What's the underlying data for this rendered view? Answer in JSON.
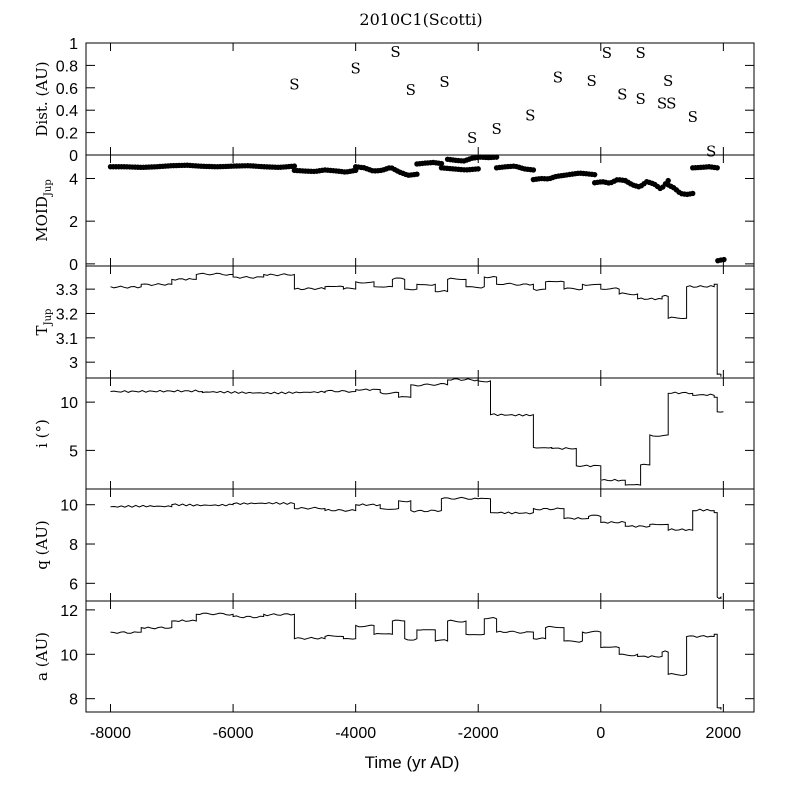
{
  "chart_data": {
    "type": "line",
    "title": "2010C1(Scotti)",
    "xlabel": "Time (yr AD)",
    "xlim": [
      -8400,
      2500
    ],
    "xticks": [
      -8000,
      -6000,
      -4000,
      -2000,
      0,
      2000
    ],
    "grid": false,
    "panels": [
      {
        "id": "dist",
        "ylabel": "Dist. (AU)",
        "ylim": [
          0,
          1
        ],
        "yticks": [
          "0",
          "0.2",
          "0.4",
          "0.6",
          "0.8",
          "1"
        ],
        "type": "scatter",
        "marker": "S",
        "points": [
          {
            "x": -5000,
            "y": 0.64
          },
          {
            "x": -4000,
            "y": 0.78
          },
          {
            "x": -3350,
            "y": 0.93
          },
          {
            "x": -3100,
            "y": 0.59
          },
          {
            "x": -2550,
            "y": 0.66
          },
          {
            "x": -2100,
            "y": 0.16
          },
          {
            "x": -1700,
            "y": 0.24
          },
          {
            "x": -1150,
            "y": 0.36
          },
          {
            "x": -700,
            "y": 0.7
          },
          {
            "x": -150,
            "y": 0.67
          },
          {
            "x": 100,
            "y": 0.92
          },
          {
            "x": 350,
            "y": 0.55
          },
          {
            "x": 650,
            "y": 0.92
          },
          {
            "x": 650,
            "y": 0.51
          },
          {
            "x": 1000,
            "y": 0.47
          },
          {
            "x": 1100,
            "y": 0.67
          },
          {
            "x": 1150,
            "y": 0.47
          },
          {
            "x": 1500,
            "y": 0.35
          },
          {
            "x": 1800,
            "y": 0.04
          }
        ]
      },
      {
        "id": "moid",
        "ylabel": "MOID",
        "ylabel_sub": "Jup",
        "ylim": [
          -0.1,
          5.1
        ],
        "yticks": [
          "0",
          "2",
          "4"
        ],
        "type": "scatter",
        "marker": "dot",
        "segments": [
          {
            "x0": -8000,
            "x1": -5000,
            "y": [
              4.55,
              4.55,
              4.52,
              4.55,
              4.6,
              4.62,
              4.57,
              4.55,
              4.58,
              4.6,
              4.55,
              4.52,
              4.58
            ]
          },
          {
            "x0": -5000,
            "x1": -4000,
            "y": [
              4.38,
              4.35,
              4.33,
              4.4,
              4.36,
              4.3,
              4.38
            ]
          },
          {
            "x0": -4000,
            "x1": -3000,
            "y": [
              4.55,
              4.5,
              4.35,
              4.38,
              4.52,
              4.3,
              4.15,
              4.2
            ]
          },
          {
            "x0": -3000,
            "x1": -2600,
            "y": [
              4.68,
              4.72,
              4.75,
              4.7
            ]
          },
          {
            "x0": -2600,
            "x1": -2000,
            "y": [
              4.5,
              4.45,
              4.4,
              4.45
            ]
          },
          {
            "x0": -2500,
            "x1": -1700,
            "y": [
              4.9,
              4.85,
              4.82,
              4.95,
              5.0,
              4.98,
              5.0
            ]
          },
          {
            "x0": -1700,
            "x1": -1100,
            "y": [
              4.5,
              4.55,
              4.58,
              4.45,
              4.4
            ]
          },
          {
            "x0": -1100,
            "x1": -100,
            "y": [
              3.95,
              4.0,
              3.98,
              4.1,
              4.15,
              4.2,
              4.25,
              4.22,
              4.18
            ]
          },
          {
            "x0": -100,
            "x1": 400,
            "y": [
              3.8,
              3.85,
              3.78,
              3.95,
              3.9
            ]
          },
          {
            "x0": 400,
            "x1": 1100,
            "y": [
              3.9,
              3.7,
              3.6,
              3.85,
              3.75,
              3.5,
              3.9
            ]
          },
          {
            "x0": 1100,
            "x1": 1500,
            "y": [
              3.7,
              3.55,
              3.3,
              3.25,
              3.3
            ]
          },
          {
            "x0": 1500,
            "x1": 1900,
            "y": [
              4.5,
              4.52,
              4.55,
              4.5
            ]
          },
          {
            "x0": 1910,
            "x1": 2010,
            "y": [
              0.15,
              0.18,
              0.2
            ]
          }
        ]
      },
      {
        "id": "tjup",
        "ylabel": "T",
        "ylabel_sub": "Jup",
        "ylim": [
          2.935,
          3.395
        ],
        "yticks": [
          "3",
          "3.1",
          "3.2",
          "3.3"
        ],
        "type": "line",
        "steps": [
          [
            -8000,
            3.31
          ],
          [
            -7500,
            3.32
          ],
          [
            -7000,
            3.34
          ],
          [
            -6600,
            3.36
          ],
          [
            -6000,
            3.35
          ],
          [
            -5500,
            3.36
          ],
          [
            -5000,
            3.3
          ],
          [
            -4500,
            3.31
          ],
          [
            -4200,
            3.3
          ],
          [
            -4000,
            3.33
          ],
          [
            -3700,
            3.31
          ],
          [
            -3400,
            3.34
          ],
          [
            -3200,
            3.3
          ],
          [
            -3000,
            3.32
          ],
          [
            -2700,
            3.29
          ],
          [
            -2500,
            3.34
          ],
          [
            -2200,
            3.31
          ],
          [
            -1900,
            3.35
          ],
          [
            -1700,
            3.32
          ],
          [
            -1100,
            3.3
          ],
          [
            -900,
            3.33
          ],
          [
            -600,
            3.3
          ],
          [
            -300,
            3.32
          ],
          [
            0,
            3.3
          ],
          [
            300,
            3.28
          ],
          [
            600,
            3.26
          ],
          [
            1000,
            3.27
          ],
          [
            1100,
            3.18
          ],
          [
            1400,
            3.31
          ],
          [
            1850,
            3.32
          ],
          [
            1900,
            2.95
          ],
          [
            1960,
            2.94
          ]
        ]
      },
      {
        "id": "incl",
        "ylabel": "i (°)",
        "ylim": [
          1.0,
          12.5
        ],
        "yticks": [
          "5",
          "10"
        ],
        "type": "line",
        "steps": [
          [
            -8000,
            11.1
          ],
          [
            -6500,
            11.0
          ],
          [
            -4500,
            11.1
          ],
          [
            -4000,
            11.3
          ],
          [
            -3600,
            11.0
          ],
          [
            -3300,
            10.5
          ],
          [
            -3100,
            11.8
          ],
          [
            -2500,
            12.3
          ],
          [
            -2000,
            12.2
          ],
          [
            -1800,
            8.7
          ],
          [
            -1100,
            5.3
          ],
          [
            -800,
            5.2
          ],
          [
            -400,
            3.4
          ],
          [
            0,
            1.9
          ],
          [
            400,
            1.4
          ],
          [
            650,
            3.5
          ],
          [
            800,
            6.6
          ],
          [
            1100,
            10.9
          ],
          [
            1500,
            10.7
          ],
          [
            1850,
            10.5
          ],
          [
            1900,
            9.0
          ],
          [
            2000,
            9.0
          ]
        ]
      },
      {
        "id": "q",
        "ylabel": "q (AU)",
        "ylim": [
          5.1,
          10.8
        ],
        "yticks": [
          "6",
          "8",
          "10"
        ],
        "type": "line",
        "steps": [
          [
            -8000,
            9.9
          ],
          [
            -7000,
            10.0
          ],
          [
            -6000,
            10.05
          ],
          [
            -5000,
            9.8
          ],
          [
            -4500,
            9.7
          ],
          [
            -4000,
            10.0
          ],
          [
            -3600,
            9.8
          ],
          [
            -3300,
            10.2
          ],
          [
            -3100,
            9.7
          ],
          [
            -2600,
            10.3
          ],
          [
            -2000,
            10.3
          ],
          [
            -1800,
            9.6
          ],
          [
            -1100,
            9.8
          ],
          [
            -600,
            9.3
          ],
          [
            -200,
            9.4
          ],
          [
            0,
            9.1
          ],
          [
            400,
            8.9
          ],
          [
            800,
            9.0
          ],
          [
            1100,
            8.7
          ],
          [
            1500,
            9.7
          ],
          [
            1850,
            9.6
          ],
          [
            1900,
            5.3
          ],
          [
            1960,
            5.2
          ]
        ]
      },
      {
        "id": "a",
        "ylabel": "a (AU)",
        "ylim": [
          7.4,
          12.4
        ],
        "yticks": [
          "8",
          "10",
          "12"
        ],
        "type": "line",
        "steps": [
          [
            -8000,
            11.0
          ],
          [
            -7500,
            11.2
          ],
          [
            -7000,
            11.5
          ],
          [
            -6600,
            11.8
          ],
          [
            -6000,
            11.7
          ],
          [
            -5500,
            11.8
          ],
          [
            -5000,
            10.7
          ],
          [
            -4500,
            10.8
          ],
          [
            -4200,
            10.7
          ],
          [
            -4000,
            11.3
          ],
          [
            -3700,
            10.9
          ],
          [
            -3400,
            11.5
          ],
          [
            -3200,
            10.7
          ],
          [
            -3000,
            11.1
          ],
          [
            -2700,
            10.6
          ],
          [
            -2500,
            11.5
          ],
          [
            -2200,
            10.9
          ],
          [
            -1900,
            11.6
          ],
          [
            -1700,
            11.0
          ],
          [
            -1100,
            10.7
          ],
          [
            -900,
            11.2
          ],
          [
            -600,
            10.6
          ],
          [
            -300,
            11.0
          ],
          [
            0,
            10.3
          ],
          [
            300,
            10.0
          ],
          [
            600,
            9.9
          ],
          [
            1000,
            10.1
          ],
          [
            1100,
            9.1
          ],
          [
            1400,
            10.8
          ],
          [
            1850,
            10.9
          ],
          [
            1900,
            7.6
          ],
          [
            1960,
            7.5
          ]
        ]
      }
    ]
  }
}
